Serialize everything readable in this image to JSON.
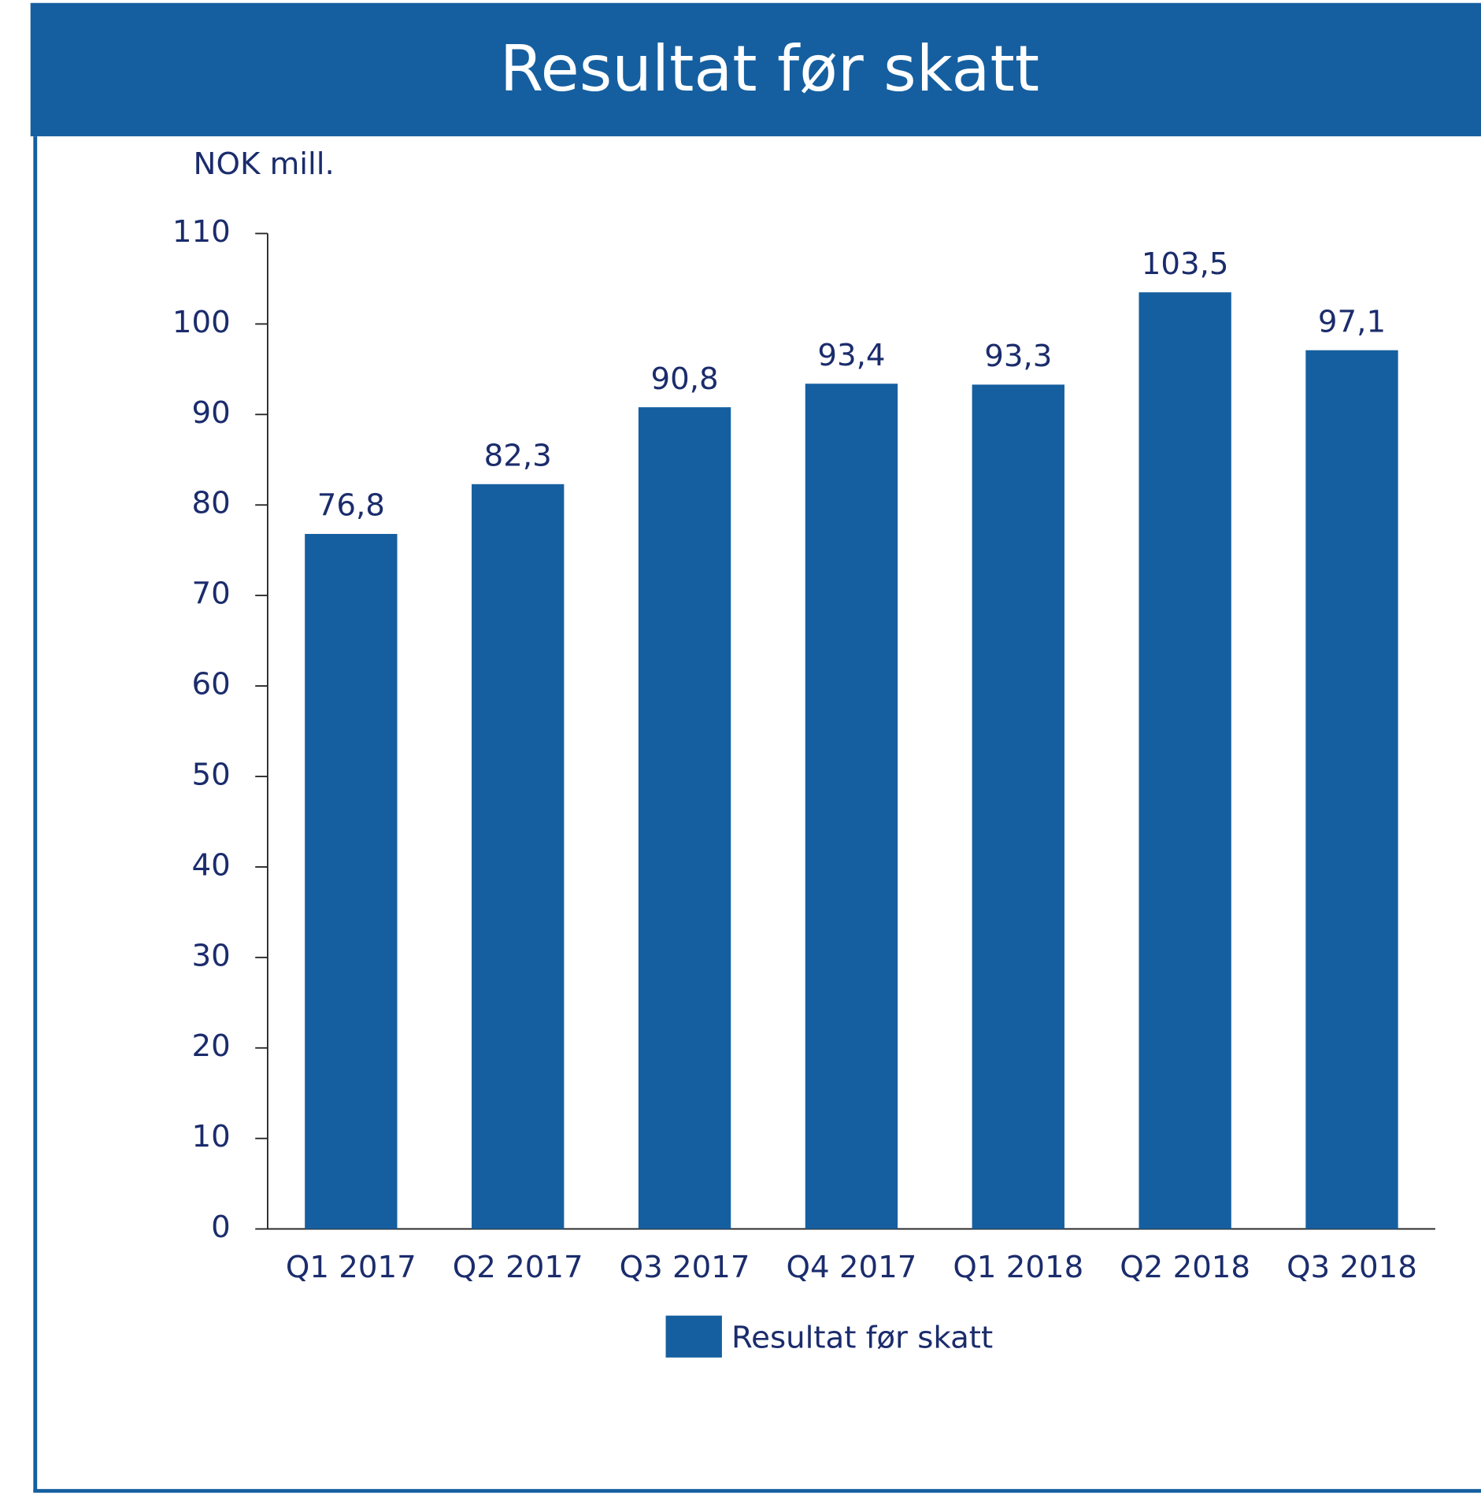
{
  "chart_data": {
    "type": "bar",
    "title": "Resultat før skatt",
    "y_label": "NOK mill.",
    "categories": [
      "Q1 2017",
      "Q2 2017",
      "Q3 2017",
      "Q4 2017",
      "Q1 2018",
      "Q2 2018",
      "Q3 2018"
    ],
    "series": [
      {
        "name": "Resultat før skatt",
        "color": "#155fa0",
        "values": [
          76.8,
          82.3,
          90.8,
          93.4,
          93.3,
          103.5,
          97.1
        ],
        "value_labels": [
          "76,8",
          "82,3",
          "90,8",
          "93,4",
          "93,3",
          "103,5",
          "97,1"
        ]
      }
    ],
    "ylim": [
      0,
      110
    ],
    "yticks": [
      0,
      10,
      20,
      30,
      40,
      50,
      60,
      70,
      80,
      90,
      100,
      110
    ],
    "grid": false,
    "legend": "bottom"
  }
}
